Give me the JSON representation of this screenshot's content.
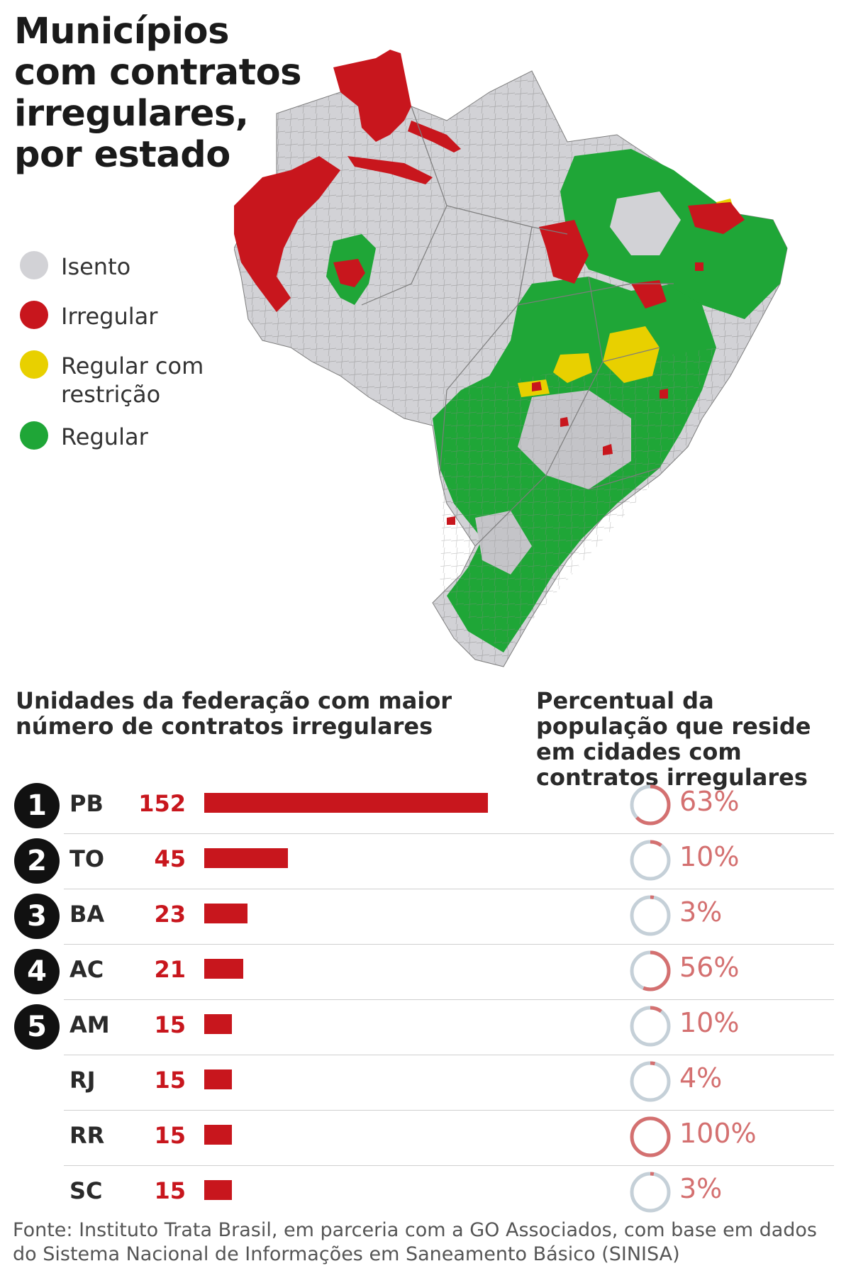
{
  "title": "Municípios com contratos irregulares, por estado",
  "legend": [
    {
      "label": "Isento",
      "color": "#d2d2d6"
    },
    {
      "label": "Irregular",
      "color": "#c8161d"
    },
    {
      "label": "Regular com restrição",
      "color": "#e8d000"
    },
    {
      "label": "Regular",
      "color": "#1fa637"
    }
  ],
  "map": {
    "description_icon": "brazil-municipalities-map"
  },
  "chart_data": [
    {
      "type": "bar",
      "title": "Unidades da federação com maior número de contratos irregulares",
      "categories": [
        "PB",
        "TO",
        "BA",
        "AC",
        "AM",
        "RJ",
        "RR",
        "SC"
      ],
      "ranks": [
        "1",
        "2",
        "3",
        "4",
        "5",
        "",
        "",
        ""
      ],
      "values": [
        152,
        45,
        23,
        21,
        15,
        15,
        15,
        15
      ],
      "value_labels": [
        "152",
        "45",
        "23",
        "21",
        "15",
        "15",
        "15",
        "15"
      ],
      "color": "#c8161d"
    },
    {
      "type": "pie",
      "title": "Percentual da população que reside em cidades com contratos irregulares",
      "categories": [
        "PB",
        "TO",
        "BA",
        "AC",
        "AM",
        "RJ",
        "RR",
        "SC"
      ],
      "values": [
        63,
        10,
        3,
        56,
        10,
        4,
        100,
        3
      ],
      "value_labels": [
        "63%",
        "10%",
        "3%",
        "56%",
        "10%",
        "4%",
        "100%",
        "3%"
      ],
      "color": "#d47070",
      "track_color": "#c5d0d8"
    }
  ],
  "source": "Fonte: Instituto Trata Brasil, em parceria com a GO Associados, com base em dados do Sistema Nacional de Informações em Saneamento Básico (SINISA)"
}
